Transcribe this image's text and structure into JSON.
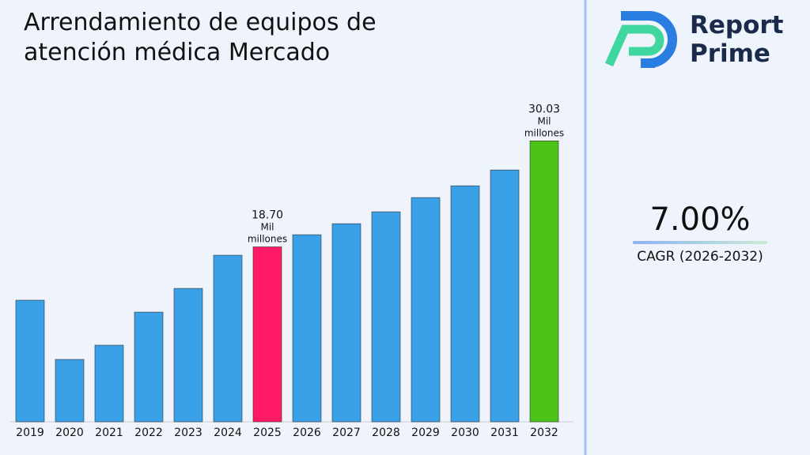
{
  "chart_data": {
    "type": "bar",
    "title": "Arrendamiento de equipos de atención médica Mercado",
    "categories": [
      "2019",
      "2020",
      "2021",
      "2022",
      "2023",
      "2024",
      "2025",
      "2026",
      "2027",
      "2028",
      "2029",
      "2030",
      "2031",
      "2032"
    ],
    "values": [
      13.0,
      6.67,
      8.19,
      11.73,
      14.26,
      17.81,
      18.7,
      20.0,
      21.18,
      22.45,
      23.97,
      25.23,
      26.92,
      30.03
    ],
    "value_labels": [
      null,
      null,
      null,
      null,
      null,
      null,
      "18.70 Mil millones",
      null,
      null,
      null,
      null,
      null,
      null,
      "30.03 Mil millones"
    ],
    "colors": [
      "#3aa0e8",
      "#3aa0e8",
      "#3aa0e8",
      "#3aa0e8",
      "#3aa0e8",
      "#3aa0e8",
      "#ff1a66",
      "#3aa0e8",
      "#3aa0e8",
      "#3aa0e8",
      "#3aa0e8",
      "#3aa0e8",
      "#3aa0e8",
      "#4cc417"
    ],
    "ylim": [
      0,
      32
    ],
    "grid": false
  },
  "brand": {
    "line1": "Report",
    "line2": "Prime"
  },
  "kpi": {
    "value": "7.00%",
    "label": "CAGR (2026-2032)"
  }
}
